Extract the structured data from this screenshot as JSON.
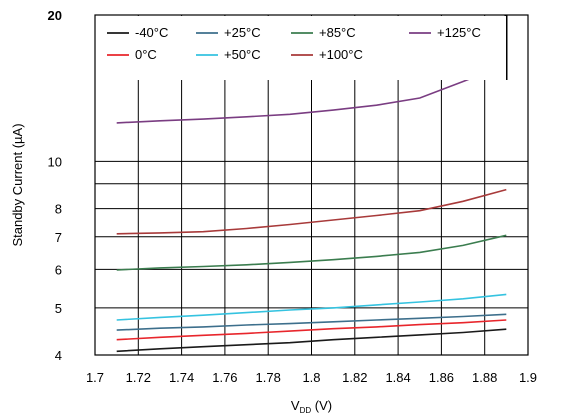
{
  "chart_data": {
    "type": "line",
    "xlabel": "V",
    "xlabel_sub": "DD",
    "xlabel_unit": " (V)",
    "ylabel": "Standby Current (µA)",
    "xlim": [
      1.7,
      1.9
    ],
    "ylim": [
      4,
      20
    ],
    "yscale": "log",
    "grid": true,
    "legend_position": "top-left",
    "x_ticks": [
      1.7,
      1.72,
      1.74,
      1.76,
      1.78,
      1.8,
      1.82,
      1.84,
      1.86,
      1.88,
      1.9
    ],
    "x_tick_labels": [
      "1.7",
      "1.72",
      "1.74",
      "1.76",
      "1.78",
      "1.8",
      "1.82",
      "1.84",
      "1.86",
      "1.88",
      "1.9"
    ],
    "y_tick_labels": [
      {
        "value": 4,
        "label": "4"
      },
      {
        "value": 5,
        "label": "5"
      },
      {
        "value": 6,
        "label": "6"
      },
      {
        "value": 7,
        "label": "7"
      },
      {
        "value": 8,
        "label": "8"
      },
      {
        "value": 10,
        "label": "10"
      },
      {
        "value": 20,
        "label": "20"
      }
    ],
    "y_grid_values": [
      4,
      5,
      6,
      7,
      8,
      9,
      10,
      20
    ],
    "x": [
      1.71,
      1.73,
      1.75,
      1.77,
      1.79,
      1.81,
      1.83,
      1.85,
      1.87,
      1.89
    ],
    "series": [
      {
        "name": "-40°C",
        "color": "#1a1a1a",
        "values": [
          4.07,
          4.12,
          4.16,
          4.2,
          4.24,
          4.3,
          4.35,
          4.4,
          4.45,
          4.52
        ]
      },
      {
        "name": "0°C",
        "color": "#e8262c",
        "values": [
          4.3,
          4.35,
          4.39,
          4.43,
          4.48,
          4.53,
          4.57,
          4.62,
          4.66,
          4.72
        ]
      },
      {
        "name": "+25°C",
        "color": "#3d6f8c",
        "values": [
          4.5,
          4.54,
          4.57,
          4.61,
          4.64,
          4.68,
          4.72,
          4.76,
          4.8,
          4.85
        ]
      },
      {
        "name": "+50°C",
        "color": "#35c3e0",
        "values": [
          4.72,
          4.78,
          4.83,
          4.89,
          4.95,
          5.0,
          5.07,
          5.14,
          5.22,
          5.33
        ]
      },
      {
        "name": "+85°C",
        "color": "#3b7d4f",
        "values": [
          5.98,
          6.04,
          6.08,
          6.13,
          6.2,
          6.28,
          6.38,
          6.5,
          6.72,
          7.05
        ]
      },
      {
        "name": "+100°C",
        "color": "#a83a3a",
        "values": [
          7.1,
          7.13,
          7.17,
          7.28,
          7.42,
          7.58,
          7.74,
          7.92,
          8.28,
          8.75
        ]
      },
      {
        "name": "+125°C",
        "color": "#7a3d82",
        "values": [
          12.0,
          12.12,
          12.22,
          12.35,
          12.5,
          12.75,
          13.05,
          13.5,
          14.6,
          15.8
        ]
      }
    ]
  }
}
